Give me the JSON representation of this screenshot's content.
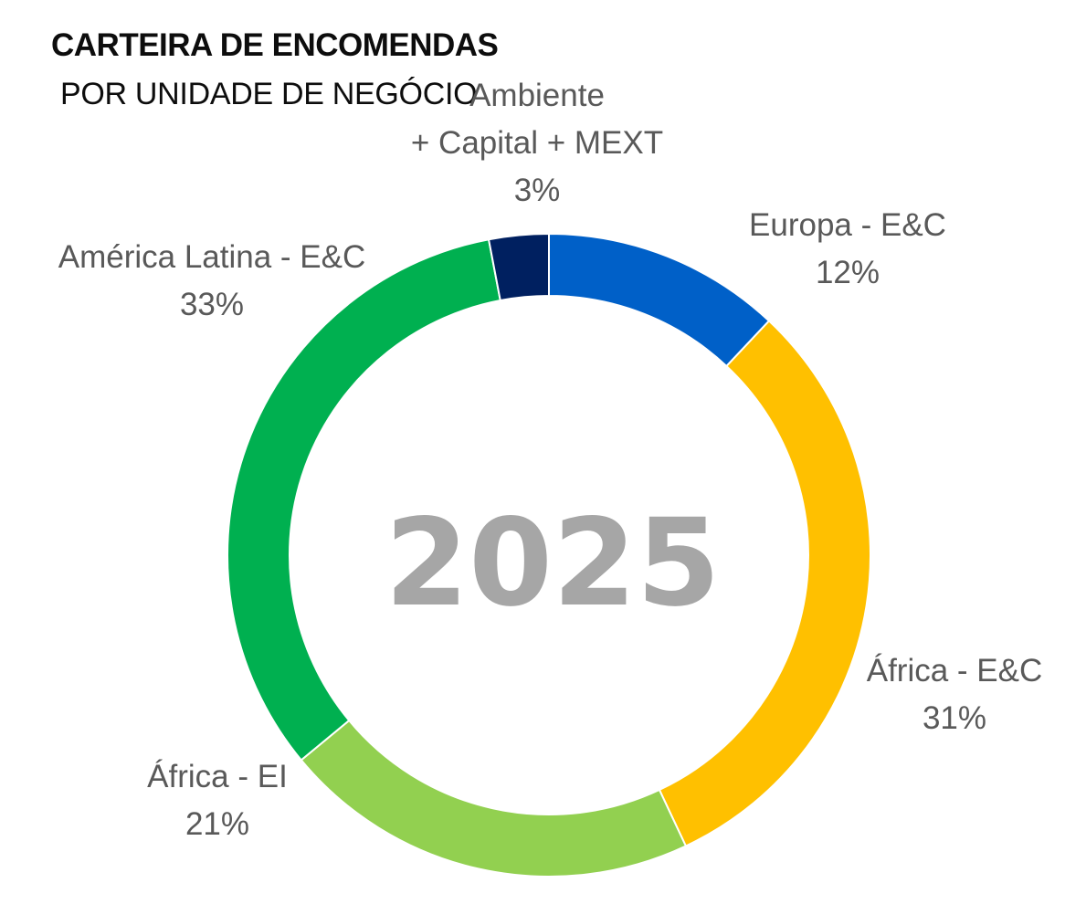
{
  "header": {
    "title": "CARTEIRA DE ENCOMENDAS",
    "subtitle": "POR UNIDADE DE NEGÓCIO"
  },
  "chart_data": {
    "type": "pie",
    "variant": "donut",
    "center_label": "2025",
    "legend": "none",
    "slices": [
      {
        "name": "Europa - E&C",
        "name_lines": [
          "Europa - E&C"
        ],
        "value": 12,
        "label": "12%",
        "color": "#0060C8"
      },
      {
        "name": "África - E&C",
        "name_lines": [
          "África - E&C"
        ],
        "value": 31,
        "label": "31%",
        "color": "#FFC000"
      },
      {
        "name": "África - EI",
        "name_lines": [
          "África - EI"
        ],
        "value": 21,
        "label": "21%",
        "color": "#92D050"
      },
      {
        "name": "América Latina - E&C",
        "name_lines": [
          "América Latina - E&C"
        ],
        "value": 33,
        "label": "33%",
        "color": "#00B050"
      },
      {
        "name": "Ambiente + Capital + MEXT",
        "name_lines": [
          "Ambiente",
          "+ Capital + MEXT"
        ],
        "value": 3,
        "label": "3%",
        "color": "#002060"
      }
    ]
  },
  "colors": {
    "label_text": "#595959",
    "center_text": "#A6A6A6"
  }
}
